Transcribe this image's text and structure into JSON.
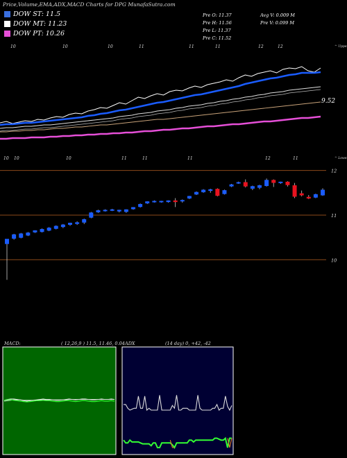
{
  "header": {
    "title": "Price,Volume,EMA,ADX,MACD Charts for DPG MunafaSutra.com"
  },
  "legend": [
    {
      "label": "DOW ST: 11.5",
      "color": "#3a6fe0"
    },
    {
      "label": "DOW MT: 11.23",
      "color": "#ffffff"
    },
    {
      "label": "DOW PT: 10.26",
      "color": "#e64fd8"
    }
  ],
  "stats": {
    "col1": [
      "Pre  O: 11.37",
      "Pre  H: 11.56",
      "Pre  L: 11.37",
      "Pre  C: 11.52"
    ],
    "col2": [
      "Avg V: 0.009 M",
      "Pre  V: 0.099 M"
    ]
  },
  "colors": {
    "background": "#000000",
    "up": "#1a5cff",
    "down": "#e8121f",
    "ema_short": "#1a5cff",
    "ema_mid": "#ffffff",
    "ema_long": "#e64fd8",
    "macd_panel": "#006600",
    "adx_panel": "#000033"
  },
  "chart_data": [
    {
      "type": "line",
      "name": "ema-panel",
      "top_labels": [
        "10",
        "10",
        "10",
        "11",
        "11",
        "11",
        "12",
        "12"
      ],
      "bottom_labels": [
        "10",
        "10",
        "10",
        "11",
        "11",
        "11",
        "12",
        "11"
      ],
      "right_top": "^ Upper",
      "right_bottom": "^ Lower",
      "price_label": "9.52",
      "series": [
        {
          "name": "price",
          "color": "#ffffff",
          "values": [
            9.33,
            9.35,
            9.32,
            9.34,
            9.36,
            9.35,
            9.38,
            9.37,
            9.4,
            9.42,
            9.41,
            9.45,
            9.47,
            9.46,
            9.5,
            9.52,
            9.55,
            9.54,
            9.58,
            9.62,
            9.6,
            9.65,
            9.7,
            9.68,
            9.72,
            9.75,
            9.73,
            9.78,
            9.8,
            9.79,
            9.83,
            9.86,
            9.84,
            9.88,
            9.9,
            9.92,
            9.95,
            9.93,
            9.98,
            10.02,
            10.0,
            10.04,
            10.06,
            10.08,
            10.05,
            10.1,
            10.12,
            10.11,
            10.14,
            10.08,
            10.06,
            10.12
          ]
        },
        {
          "name": "ema-short",
          "color": "#1a5cff",
          "values": [
            9.3,
            9.31,
            9.31,
            9.32,
            9.33,
            9.33,
            9.34,
            9.35,
            9.36,
            9.37,
            9.38,
            9.39,
            9.4,
            9.41,
            9.43,
            9.44,
            9.46,
            9.47,
            9.49,
            9.51,
            9.52,
            9.54,
            9.56,
            9.58,
            9.6,
            9.62,
            9.63,
            9.65,
            9.67,
            9.69,
            9.71,
            9.73,
            9.74,
            9.76,
            9.78,
            9.8,
            9.82,
            9.84,
            9.86,
            9.89,
            9.91,
            9.93,
            9.95,
            9.97,
            9.98,
            10.0,
            10.02,
            10.03,
            10.05,
            10.05,
            10.05,
            10.06
          ]
        },
        {
          "name": "ema-mid",
          "color": "#dddddd",
          "values": [
            9.25,
            9.26,
            9.26,
            9.27,
            9.28,
            9.28,
            9.29,
            9.3,
            9.3,
            9.31,
            9.32,
            9.33,
            9.34,
            9.35,
            9.36,
            9.37,
            9.38,
            9.39,
            9.4,
            9.42,
            9.43,
            9.44,
            9.46,
            9.47,
            9.48,
            9.5,
            9.51,
            9.52,
            9.54,
            9.55,
            9.57,
            9.58,
            9.59,
            9.61,
            9.62,
            9.64,
            9.65,
            9.67,
            9.68,
            9.7,
            9.71,
            9.73,
            9.74,
            9.76,
            9.77,
            9.78,
            9.8,
            9.81,
            9.82,
            9.83,
            9.84,
            9.85
          ]
        },
        {
          "name": "ema-long",
          "color": "#c9a37a",
          "values": [
            9.2,
            9.2,
            9.21,
            9.21,
            9.22,
            9.22,
            9.23,
            9.23,
            9.24,
            9.25,
            9.25,
            9.26,
            9.27,
            9.27,
            9.28,
            9.29,
            9.3,
            9.3,
            9.31,
            9.32,
            9.33,
            9.34,
            9.35,
            9.36,
            9.37,
            9.38,
            9.38,
            9.39,
            9.4,
            9.41,
            9.42,
            9.43,
            9.44,
            9.45,
            9.46,
            9.47,
            9.48,
            9.49,
            9.5,
            9.51,
            9.52,
            9.53,
            9.54,
            9.55,
            9.56,
            9.57,
            9.58,
            9.59,
            9.6,
            9.61,
            9.62,
            9.63
          ]
        },
        {
          "name": "ema-pt",
          "color": "#e64fd8",
          "values": [
            9.1,
            9.1,
            9.11,
            9.11,
            9.11,
            9.12,
            9.12,
            9.12,
            9.13,
            9.13,
            9.14,
            9.14,
            9.15,
            9.15,
            9.16,
            9.16,
            9.17,
            9.17,
            9.18,
            9.18,
            9.19,
            9.19,
            9.2,
            9.21,
            9.21,
            9.22,
            9.23,
            9.23,
            9.24,
            9.25,
            9.25,
            9.26,
            9.27,
            9.28,
            9.28,
            9.29,
            9.3,
            9.31,
            9.31,
            9.32,
            9.33,
            9.34,
            9.35,
            9.35,
            9.36,
            9.37,
            9.38,
            9.39,
            9.4,
            9.4,
            9.41,
            9.42
          ]
        }
      ],
      "ylim": [
        9.0,
        10.3
      ]
    },
    {
      "type": "candlestick",
      "name": "price-panel",
      "y_ticks": [
        "12",
        "11",
        "10"
      ],
      "ylim": [
        9.6,
        12.15
      ],
      "candles": [
        {
          "o": 10.36,
          "h": 10.44,
          "l": 9.55,
          "c": 10.46
        },
        {
          "o": 10.48,
          "h": 10.58,
          "l": 10.45,
          "c": 10.56
        },
        {
          "o": 10.5,
          "h": 10.6,
          "l": 10.48,
          "c": 10.58
        },
        {
          "o": 10.55,
          "h": 10.62,
          "l": 10.53,
          "c": 10.6
        },
        {
          "o": 10.62,
          "h": 10.66,
          "l": 10.6,
          "c": 10.65
        },
        {
          "o": 10.63,
          "h": 10.7,
          "l": 10.61,
          "c": 10.68
        },
        {
          "o": 10.66,
          "h": 10.73,
          "l": 10.64,
          "c": 10.71
        },
        {
          "o": 10.7,
          "h": 10.77,
          "l": 10.68,
          "c": 10.75
        },
        {
          "o": 10.74,
          "h": 10.8,
          "l": 10.71,
          "c": 10.78
        },
        {
          "o": 10.79,
          "h": 10.83,
          "l": 10.76,
          "c": 10.82
        },
        {
          "o": 10.81,
          "h": 10.86,
          "l": 10.78,
          "c": 10.83
        },
        {
          "o": 10.84,
          "h": 10.92,
          "l": 10.8,
          "c": 10.9
        },
        {
          "o": 10.95,
          "h": 11.07,
          "l": 10.93,
          "c": 11.05
        },
        {
          "o": 11.07,
          "h": 11.12,
          "l": 11.05,
          "c": 11.1
        },
        {
          "o": 11.1,
          "h": 11.13,
          "l": 11.08,
          "c": 11.11
        },
        {
          "o": 11.11,
          "h": 11.14,
          "l": 11.09,
          "c": 11.12
        },
        {
          "o": 11.09,
          "h": 11.12,
          "l": 11.06,
          "c": 11.11
        },
        {
          "o": 11.08,
          "h": 11.13,
          "l": 11.05,
          "c": 11.12
        },
        {
          "o": 11.14,
          "h": 11.18,
          "l": 11.12,
          "c": 11.17
        },
        {
          "o": 11.19,
          "h": 11.26,
          "l": 11.17,
          "c": 11.24
        },
        {
          "o": 11.27,
          "h": 11.31,
          "l": 11.25,
          "c": 11.3
        },
        {
          "o": 11.3,
          "h": 11.33,
          "l": 11.28,
          "c": 11.31
        },
        {
          "o": 11.3,
          "h": 11.32,
          "l": 11.28,
          "c": 11.31
        },
        {
          "o": 11.3,
          "h": 11.33,
          "l": 11.28,
          "c": 11.32
        },
        {
          "o": 11.32,
          "h": 11.38,
          "l": 11.18,
          "c": 11.3
        },
        {
          "o": 11.32,
          "h": 11.35,
          "l": 11.28,
          "c": 11.33
        },
        {
          "o": 11.38,
          "h": 11.43,
          "l": 11.36,
          "c": 11.42
        },
        {
          "o": 11.47,
          "h": 11.53,
          "l": 11.45,
          "c": 11.51
        },
        {
          "o": 11.52,
          "h": 11.58,
          "l": 11.5,
          "c": 11.56
        },
        {
          "o": 11.55,
          "h": 11.59,
          "l": 11.5,
          "c": 11.57
        },
        {
          "o": 11.58,
          "h": 11.6,
          "l": 11.42,
          "c": 11.44
        },
        {
          "o": 11.48,
          "h": 11.57,
          "l": 11.46,
          "c": 11.55
        },
        {
          "o": 11.65,
          "h": 11.7,
          "l": 11.63,
          "c": 11.68
        },
        {
          "o": 11.72,
          "h": 11.75,
          "l": 11.7,
          "c": 11.73
        },
        {
          "o": 11.73,
          "h": 11.8,
          "l": 11.62,
          "c": 11.65
        },
        {
          "o": 11.6,
          "h": 11.66,
          "l": 11.56,
          "c": 11.64
        },
        {
          "o": 11.62,
          "h": 11.68,
          "l": 11.58,
          "c": 11.66
        },
        {
          "o": 11.66,
          "h": 11.82,
          "l": 11.64,
          "c": 11.78
        },
        {
          "o": 11.78,
          "h": 11.8,
          "l": 11.63,
          "c": 11.73
        },
        {
          "o": 11.73,
          "h": 11.75,
          "l": 11.7,
          "c": 11.74
        },
        {
          "o": 11.74,
          "h": 11.76,
          "l": 11.64,
          "c": 11.68
        },
        {
          "o": 11.66,
          "h": 11.72,
          "l": 11.38,
          "c": 11.42
        },
        {
          "o": 11.48,
          "h": 11.55,
          "l": 11.42,
          "c": 11.45
        },
        {
          "o": 11.4,
          "h": 11.45,
          "l": 11.36,
          "c": 11.38
        },
        {
          "o": 11.4,
          "h": 11.48,
          "l": 11.38,
          "c": 11.46
        },
        {
          "o": 11.45,
          "h": 11.6,
          "l": 11.43,
          "c": 11.56
        }
      ]
    },
    {
      "type": "line",
      "name": "macd-panel",
      "label": "MACD:",
      "params": "( 12,26,9 ) 11.5, 11.46, 0.04",
      "ylim": [
        -1,
        1
      ],
      "series": [
        {
          "name": "macd",
          "color": "#ffffff",
          "values": [
            0.02,
            0.04,
            0.05,
            0.05,
            0.04,
            0.03,
            0.01,
            0.0,
            0.01,
            0.02,
            0.03,
            0.04,
            0.05,
            0.04,
            0.04,
            0.03,
            0.02,
            0.02,
            0.03,
            0.04,
            0.05,
            0.04,
            0.03,
            0.04,
            0.05,
            0.05,
            0.04,
            0.03,
            0.03,
            0.04,
            0.05,
            0.04,
            0.04,
            0.05,
            0.04
          ]
        },
        {
          "name": "signal",
          "color": "#e8e8e8",
          "values": [
            0.0,
            0.01,
            0.02,
            0.03,
            0.03,
            0.03,
            0.02,
            0.02,
            0.02,
            0.02,
            0.02,
            0.03,
            0.03,
            0.03,
            0.03,
            0.03,
            0.03,
            0.03,
            0.03,
            0.03,
            0.04,
            0.04,
            0.04,
            0.04,
            0.04,
            0.04,
            0.04,
            0.04,
            0.04,
            0.04,
            0.04,
            0.04,
            0.04,
            0.04,
            0.04
          ]
        },
        {
          "name": "histogram",
          "color": "#33ff33",
          "values": [
            0.02,
            0.03,
            0.03,
            0.02,
            0.01,
            0.0,
            -0.01,
            -0.02,
            -0.01,
            0.0,
            0.01,
            0.01,
            0.02,
            0.01,
            0.01,
            0.0,
            -0.01,
            -0.01,
            0.0,
            0.01,
            0.01,
            0.0,
            -0.01,
            0.0,
            0.01,
            0.01,
            0.0,
            -0.01,
            -0.01,
            0.0,
            0.01,
            0.0,
            0.0,
            0.01,
            0.0
          ]
        }
      ]
    },
    {
      "type": "line",
      "name": "adx-panel",
      "label": "ADX",
      "params": "(14  day) 0,  +42,  -42",
      "ylim": [
        0,
        100
      ],
      "series": [
        {
          "name": "di-plus",
          "color": "#dddddd",
          "values": [
            46,
            46,
            42,
            40,
            41,
            42,
            42,
            55,
            42,
            42,
            55,
            40,
            42,
            40,
            40,
            40,
            40,
            56,
            40,
            40,
            40,
            40,
            40,
            45,
            42,
            56,
            40,
            40,
            42,
            42,
            42,
            40,
            40,
            40,
            40,
            56,
            42,
            40,
            40,
            40,
            40,
            40,
            42,
            42,
            46,
            40,
            42,
            42,
            55,
            44,
            40,
            45
          ]
        },
        {
          "name": "di-minus",
          "color": "#33ff33",
          "values": [
            8,
            5,
            5,
            8,
            6,
            6,
            6,
            6,
            5,
            4,
            4,
            4,
            4,
            2,
            5,
            5,
            0,
            0,
            5,
            5,
            5,
            5,
            5,
            3,
            0,
            5,
            5,
            5,
            5,
            5,
            5,
            8,
            8,
            6,
            8,
            8,
            8,
            8,
            8,
            8,
            8,
            8,
            8,
            10,
            10,
            9,
            8,
            8,
            10,
            0,
            10,
            10
          ]
        },
        {
          "name": "adx",
          "color": "#e08020",
          "values": [
            null,
            null,
            null,
            null,
            null,
            null,
            null,
            null,
            null,
            null,
            null,
            null,
            null,
            null,
            null,
            null,
            null,
            null,
            null,
            null,
            null,
            null,
            8,
            0,
            0,
            null,
            null,
            null,
            null,
            null,
            null,
            null,
            null,
            null,
            null,
            null,
            null,
            null,
            null,
            null,
            null,
            null,
            null,
            null,
            null,
            null,
            null,
            null,
            null,
            10,
            0,
            10
          ]
        }
      ]
    }
  ]
}
